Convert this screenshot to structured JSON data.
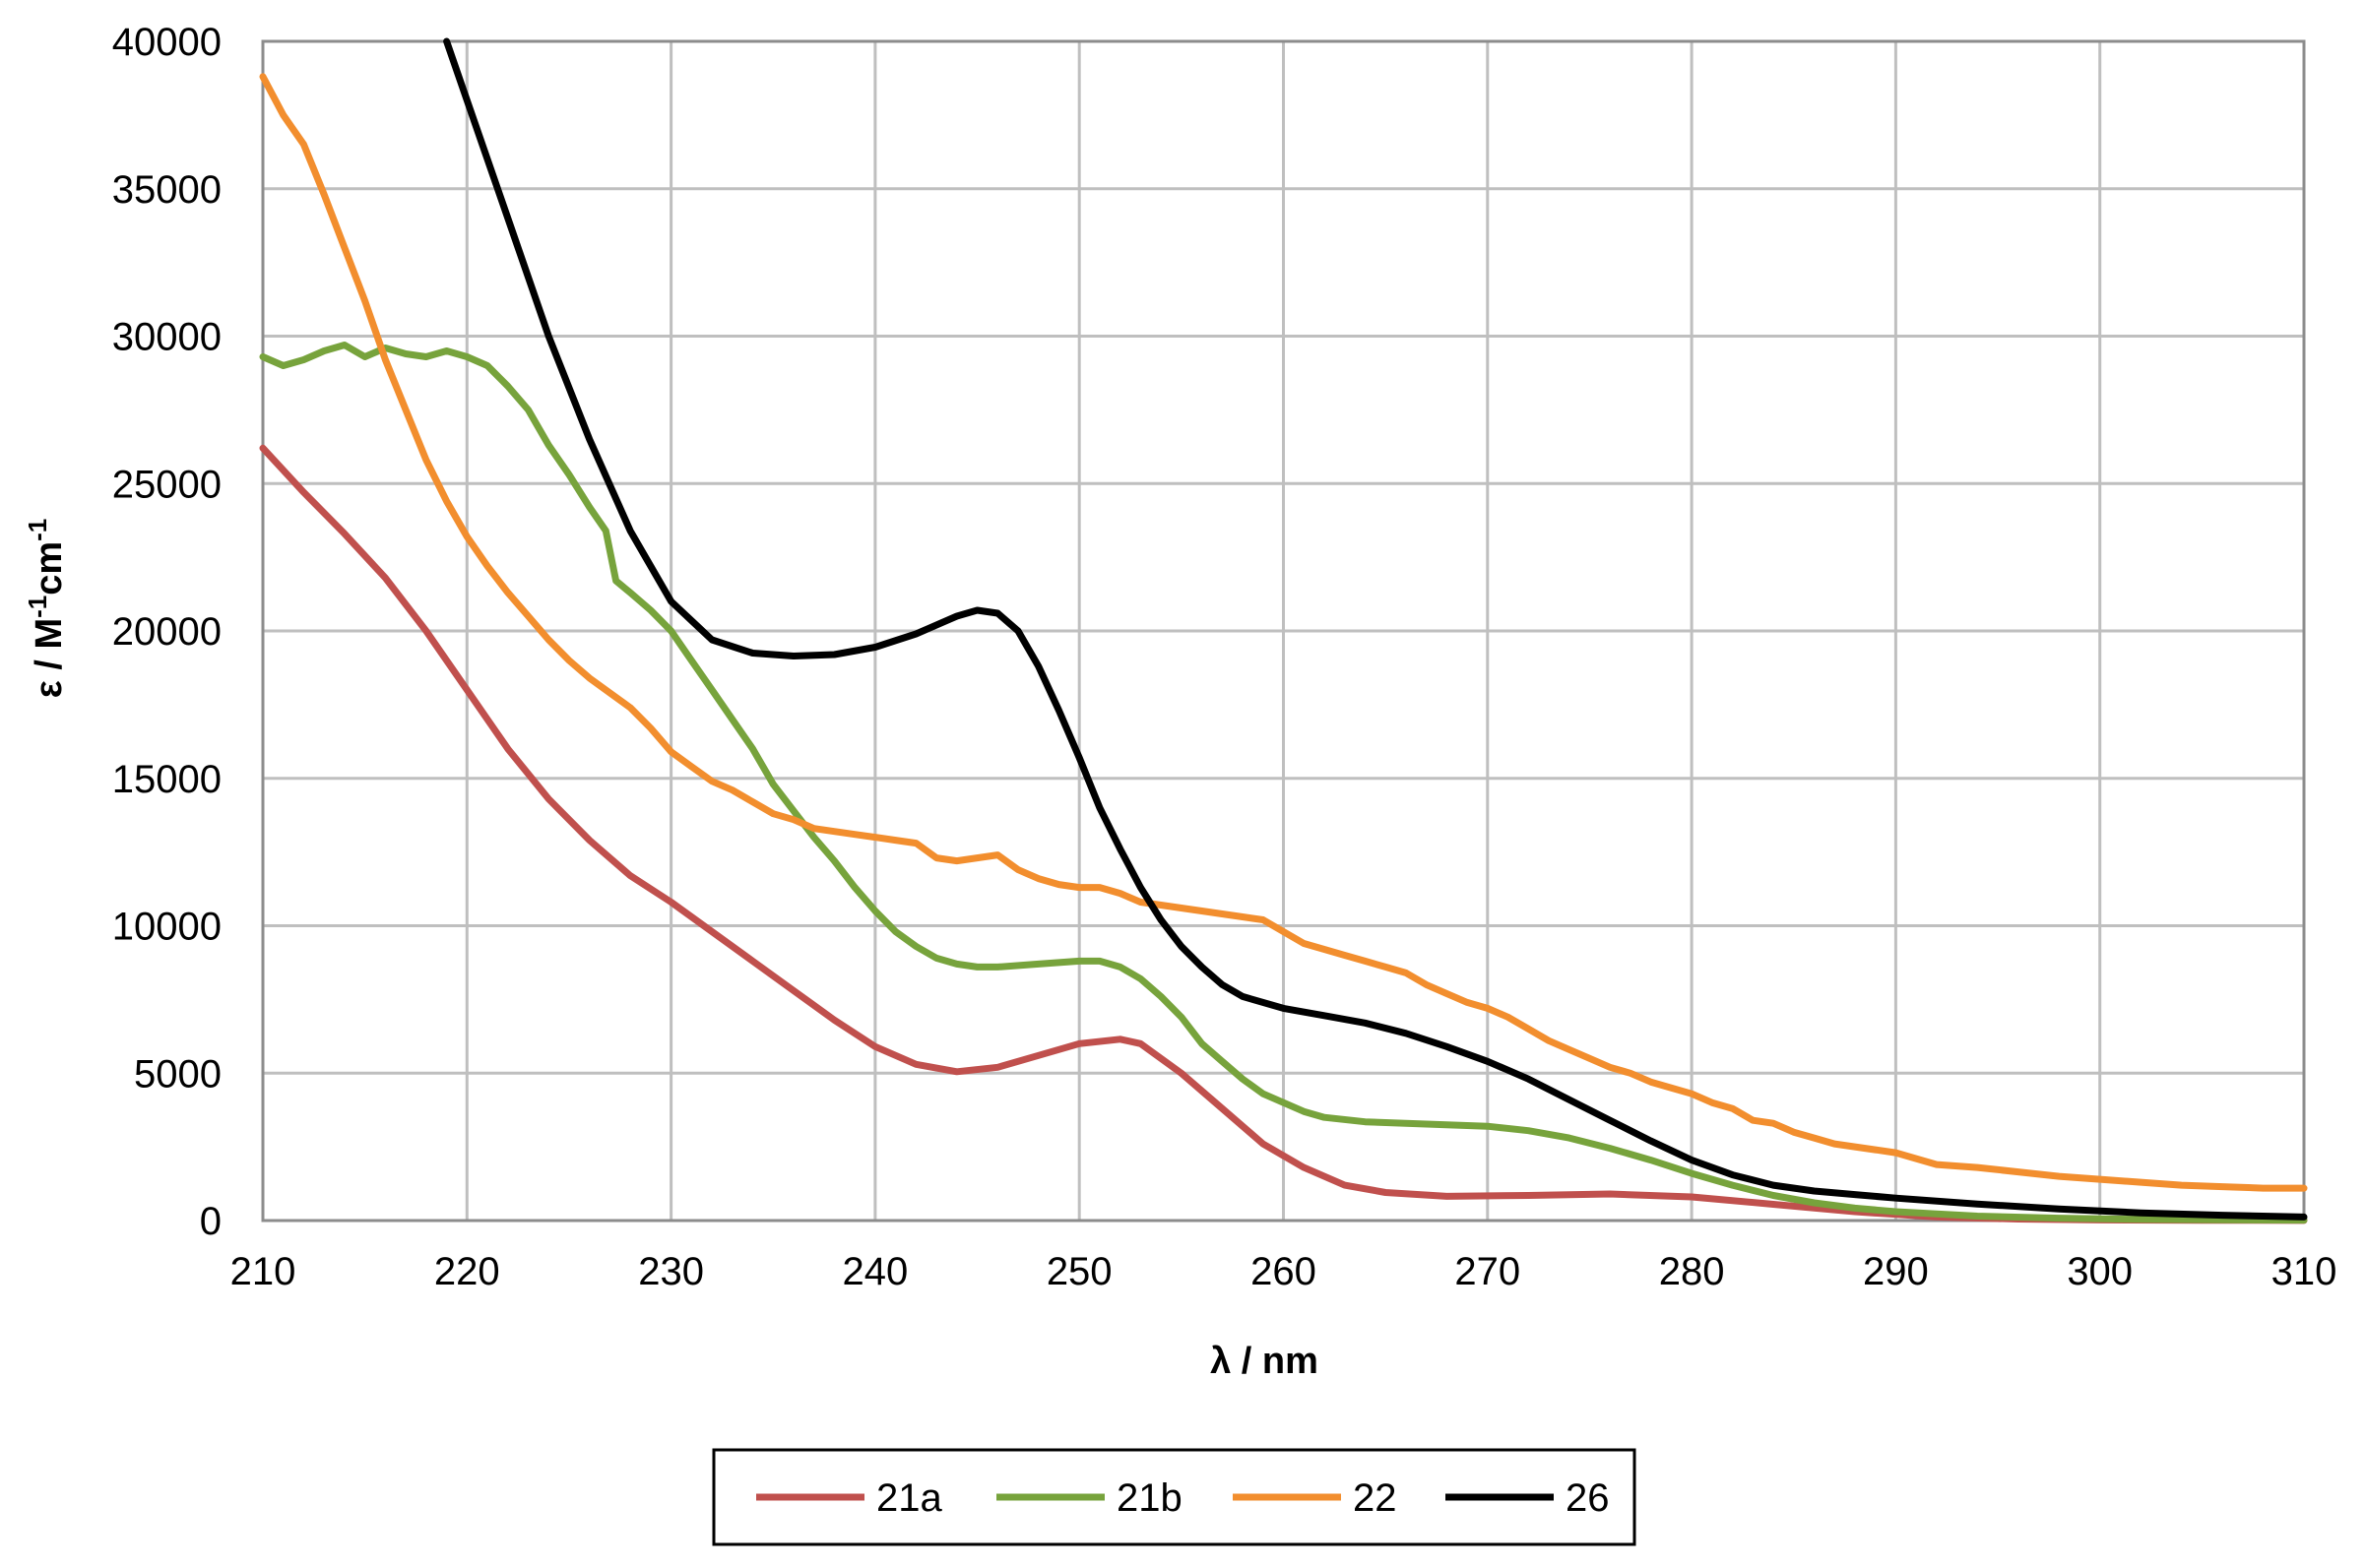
{
  "chart_data": {
    "type": "line",
    "xlabel": "λ / nm",
    "ylabel": {
      "prefix": "ε / M",
      "sup1": "-1",
      "mid": "cm",
      "sup2": "-1"
    },
    "xlim": [
      210,
      310
    ],
    "ylim": [
      0,
      40000
    ],
    "x_ticks": [
      210,
      220,
      230,
      240,
      250,
      260,
      270,
      280,
      290,
      300,
      310
    ],
    "y_ticks": [
      0,
      5000,
      10000,
      15000,
      20000,
      25000,
      30000,
      35000,
      40000
    ],
    "grid": true,
    "legend_position": "bottom",
    "series": [
      {
        "name": "21a",
        "color": "#c0504d",
        "points": [
          [
            210,
            26200
          ],
          [
            212,
            24700
          ],
          [
            214,
            23300
          ],
          [
            216,
            21800
          ],
          [
            218,
            20000
          ],
          [
            220,
            18000
          ],
          [
            222,
            16000
          ],
          [
            224,
            14300
          ],
          [
            226,
            12900
          ],
          [
            228,
            11700
          ],
          [
            230,
            10800
          ],
          [
            232,
            9800
          ],
          [
            234,
            8800
          ],
          [
            236,
            7800
          ],
          [
            238,
            6800
          ],
          [
            240,
            5900
          ],
          [
            242,
            5300
          ],
          [
            244,
            5050
          ],
          [
            246,
            5200
          ],
          [
            248,
            5600
          ],
          [
            250,
            6000
          ],
          [
            252,
            6150
          ],
          [
            253,
            6000
          ],
          [
            255,
            5000
          ],
          [
            257,
            3800
          ],
          [
            259,
            2600
          ],
          [
            261,
            1800
          ],
          [
            263,
            1200
          ],
          [
            265,
            950
          ],
          [
            268,
            820
          ],
          [
            272,
            850
          ],
          [
            276,
            900
          ],
          [
            280,
            800
          ],
          [
            284,
            550
          ],
          [
            288,
            300
          ],
          [
            292,
            120
          ],
          [
            296,
            50
          ],
          [
            300,
            20
          ],
          [
            305,
            10
          ],
          [
            310,
            5
          ]
        ]
      },
      {
        "name": "21b",
        "color": "#77a33c",
        "points": [
          [
            210,
            29300
          ],
          [
            211,
            29000
          ],
          [
            212,
            29200
          ],
          [
            213,
            29500
          ],
          [
            214,
            29700
          ],
          [
            215,
            29300
          ],
          [
            216,
            29600
          ],
          [
            217,
            29400
          ],
          [
            218,
            29300
          ],
          [
            219,
            29500
          ],
          [
            220,
            29300
          ],
          [
            221,
            29000
          ],
          [
            222,
            28300
          ],
          [
            223,
            27500
          ],
          [
            224,
            26300
          ],
          [
            225,
            25300
          ],
          [
            226,
            24200
          ],
          [
            226.8,
            23400
          ],
          [
            227.3,
            21700
          ],
          [
            228,
            21300
          ],
          [
            229,
            20700
          ],
          [
            230,
            20000
          ],
          [
            231,
            19000
          ],
          [
            232,
            18000
          ],
          [
            233,
            17000
          ],
          [
            234,
            16000
          ],
          [
            235,
            14800
          ],
          [
            236,
            13900
          ],
          [
            237,
            13000
          ],
          [
            238,
            12200
          ],
          [
            239,
            11300
          ],
          [
            240,
            10500
          ],
          [
            241,
            9800
          ],
          [
            242,
            9300
          ],
          [
            243,
            8900
          ],
          [
            244,
            8700
          ],
          [
            245,
            8600
          ],
          [
            246,
            8600
          ],
          [
            248,
            8700
          ],
          [
            250,
            8800
          ],
          [
            251,
            8800
          ],
          [
            252,
            8600
          ],
          [
            253,
            8200
          ],
          [
            254,
            7600
          ],
          [
            255,
            6900
          ],
          [
            256,
            6000
          ],
          [
            257,
            5400
          ],
          [
            258,
            4800
          ],
          [
            259,
            4300
          ],
          [
            260,
            4000
          ],
          [
            261,
            3700
          ],
          [
            262,
            3500
          ],
          [
            264,
            3350
          ],
          [
            266,
            3300
          ],
          [
            268,
            3250
          ],
          [
            270,
            3200
          ],
          [
            272,
            3050
          ],
          [
            274,
            2800
          ],
          [
            276,
            2450
          ],
          [
            278,
            2050
          ],
          [
            280,
            1600
          ],
          [
            282,
            1200
          ],
          [
            284,
            850
          ],
          [
            286,
            600
          ],
          [
            288,
            420
          ],
          [
            290,
            300
          ],
          [
            294,
            150
          ],
          [
            298,
            80
          ],
          [
            302,
            40
          ],
          [
            306,
            25
          ],
          [
            310,
            15
          ]
        ]
      },
      {
        "name": "22",
        "color": "#f28e2e",
        "points": [
          [
            210,
            38800
          ],
          [
            211,
            37500
          ],
          [
            212,
            36500
          ],
          [
            213,
            34800
          ],
          [
            214,
            33000
          ],
          [
            215,
            31200
          ],
          [
            216,
            29200
          ],
          [
            217,
            27500
          ],
          [
            218,
            25800
          ],
          [
            219,
            24400
          ],
          [
            220,
            23200
          ],
          [
            221,
            22200
          ],
          [
            222,
            21300
          ],
          [
            223,
            20500
          ],
          [
            224,
            19700
          ],
          [
            225,
            19000
          ],
          [
            226,
            18400
          ],
          [
            227,
            17900
          ],
          [
            228,
            17400
          ],
          [
            229,
            16700
          ],
          [
            230,
            15900
          ],
          [
            231,
            15400
          ],
          [
            232,
            14900
          ],
          [
            233,
            14600
          ],
          [
            234,
            14200
          ],
          [
            235,
            13800
          ],
          [
            236,
            13600
          ],
          [
            237,
            13300
          ],
          [
            238,
            13200
          ],
          [
            239,
            13100
          ],
          [
            240,
            13000
          ],
          [
            241,
            12900
          ],
          [
            242,
            12800
          ],
          [
            243,
            12300
          ],
          [
            244,
            12200
          ],
          [
            245,
            12300
          ],
          [
            246,
            12400
          ],
          [
            247,
            11900
          ],
          [
            248,
            11600
          ],
          [
            249,
            11400
          ],
          [
            250,
            11300
          ],
          [
            251,
            11300
          ],
          [
            252,
            11100
          ],
          [
            253,
            10800
          ],
          [
            254,
            10700
          ],
          [
            255,
            10600
          ],
          [
            256,
            10500
          ],
          [
            257,
            10400
          ],
          [
            258,
            10300
          ],
          [
            259,
            10200
          ],
          [
            260,
            9800
          ],
          [
            261,
            9400
          ],
          [
            262,
            9200
          ],
          [
            263,
            9000
          ],
          [
            264,
            8800
          ],
          [
            265,
            8600
          ],
          [
            266,
            8400
          ],
          [
            267,
            8000
          ],
          [
            268,
            7700
          ],
          [
            269,
            7400
          ],
          [
            270,
            7200
          ],
          [
            271,
            6900
          ],
          [
            272,
            6500
          ],
          [
            273,
            6100
          ],
          [
            274,
            5800
          ],
          [
            275,
            5500
          ],
          [
            276,
            5200
          ],
          [
            277,
            5000
          ],
          [
            278,
            4700
          ],
          [
            279,
            4500
          ],
          [
            280,
            4300
          ],
          [
            281,
            4000
          ],
          [
            282,
            3800
          ],
          [
            283,
            3400
          ],
          [
            284,
            3300
          ],
          [
            285,
            3000
          ],
          [
            286,
            2800
          ],
          [
            287,
            2600
          ],
          [
            288,
            2500
          ],
          [
            289,
            2400
          ],
          [
            290,
            2300
          ],
          [
            291,
            2100
          ],
          [
            292,
            1900
          ],
          [
            294,
            1800
          ],
          [
            296,
            1650
          ],
          [
            298,
            1500
          ],
          [
            300,
            1400
          ],
          [
            302,
            1300
          ],
          [
            304,
            1200
          ],
          [
            306,
            1150
          ],
          [
            308,
            1100
          ],
          [
            310,
            1100
          ]
        ]
      },
      {
        "name": "26",
        "color": "#000000",
        "points": [
          [
            219,
            40000
          ],
          [
            220,
            38000
          ],
          [
            222,
            34000
          ],
          [
            224,
            30000
          ],
          [
            226,
            26500
          ],
          [
            228,
            23400
          ],
          [
            230,
            21000
          ],
          [
            232,
            19700
          ],
          [
            234,
            19250
          ],
          [
            236,
            19150
          ],
          [
            238,
            19200
          ],
          [
            240,
            19450
          ],
          [
            242,
            19900
          ],
          [
            244,
            20500
          ],
          [
            245,
            20700
          ],
          [
            246,
            20600
          ],
          [
            247,
            20000
          ],
          [
            248,
            18800
          ],
          [
            249,
            17300
          ],
          [
            250,
            15700
          ],
          [
            251,
            14000
          ],
          [
            252,
            12600
          ],
          [
            253,
            11300
          ],
          [
            254,
            10200
          ],
          [
            255,
            9300
          ],
          [
            256,
            8600
          ],
          [
            257,
            8000
          ],
          [
            258,
            7600
          ],
          [
            260,
            7200
          ],
          [
            262,
            6950
          ],
          [
            264,
            6700
          ],
          [
            266,
            6350
          ],
          [
            268,
            5900
          ],
          [
            270,
            5400
          ],
          [
            272,
            4800
          ],
          [
            274,
            4100
          ],
          [
            276,
            3400
          ],
          [
            278,
            2700
          ],
          [
            280,
            2050
          ],
          [
            282,
            1550
          ],
          [
            284,
            1200
          ],
          [
            286,
            1000
          ],
          [
            288,
            880
          ],
          [
            290,
            760
          ],
          [
            294,
            560
          ],
          [
            298,
            390
          ],
          [
            302,
            260
          ],
          [
            306,
            180
          ],
          [
            310,
            120
          ]
        ]
      }
    ]
  }
}
